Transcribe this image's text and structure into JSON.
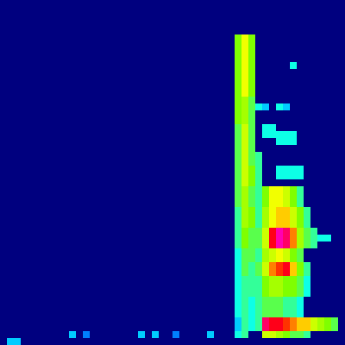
{
  "chart_data": {
    "type": "heatmap",
    "tick_labels": false,
    "grid": false,
    "xlim": [
      0,
      50
    ],
    "ylim": [
      0,
      50
    ],
    "value_range": [
      0,
      1
    ],
    "cells": [
      [
        34,
        44,
        0.5
      ],
      [
        35,
        44,
        0.65
      ],
      [
        36,
        44,
        0.5
      ],
      [
        34,
        43,
        0.5
      ],
      [
        35,
        43,
        0.65
      ],
      [
        36,
        43,
        0.5
      ],
      [
        34,
        42,
        0.5
      ],
      [
        35,
        42,
        0.65
      ],
      [
        36,
        42,
        0.5
      ],
      [
        34,
        41,
        0.5
      ],
      [
        35,
        41,
        0.65
      ],
      [
        36,
        41,
        0.5
      ],
      [
        34,
        40,
        0.5
      ],
      [
        35,
        40,
        0.65
      ],
      [
        36,
        40,
        0.5
      ],
      [
        42,
        40,
        0.35
      ],
      [
        34,
        39,
        0.5
      ],
      [
        35,
        39,
        0.65
      ],
      [
        36,
        39,
        0.5
      ],
      [
        34,
        38,
        0.5
      ],
      [
        35,
        38,
        0.65
      ],
      [
        36,
        38,
        0.5
      ],
      [
        34,
        37,
        0.5
      ],
      [
        35,
        37,
        0.65
      ],
      [
        36,
        37,
        0.5
      ],
      [
        34,
        36,
        0.5
      ],
      [
        35,
        36,
        0.65
      ],
      [
        36,
        36,
        0.5
      ],
      [
        34,
        35,
        0.5
      ],
      [
        35,
        35,
        0.55
      ],
      [
        36,
        35,
        0.45
      ],
      [
        34,
        34,
        0.5
      ],
      [
        35,
        34,
        0.55
      ],
      [
        36,
        34,
        0.45
      ],
      [
        37,
        34,
        0.35
      ],
      [
        38,
        34,
        0.3
      ],
      [
        40,
        34,
        0.35
      ],
      [
        41,
        34,
        0.3
      ],
      [
        34,
        33,
        0.5
      ],
      [
        35,
        33,
        0.55
      ],
      [
        36,
        33,
        0.45
      ],
      [
        34,
        32,
        0.5
      ],
      [
        35,
        32,
        0.55
      ],
      [
        36,
        32,
        0.45
      ],
      [
        34,
        31,
        0.45
      ],
      [
        35,
        31,
        0.6
      ],
      [
        36,
        31,
        0.45
      ],
      [
        38,
        31,
        0.35
      ],
      [
        39,
        31,
        0.35
      ],
      [
        34,
        30,
        0.45
      ],
      [
        35,
        30,
        0.6
      ],
      [
        36,
        30,
        0.45
      ],
      [
        38,
        30,
        0.35
      ],
      [
        39,
        30,
        0.35
      ],
      [
        40,
        30,
        0.35
      ],
      [
        41,
        30,
        0.35
      ],
      [
        42,
        30,
        0.35
      ],
      [
        34,
        29,
        0.45
      ],
      [
        35,
        29,
        0.6
      ],
      [
        36,
        29,
        0.45
      ],
      [
        40,
        29,
        0.35
      ],
      [
        41,
        29,
        0.35
      ],
      [
        42,
        29,
        0.35
      ],
      [
        34,
        28,
        0.45
      ],
      [
        35,
        28,
        0.6
      ],
      [
        36,
        28,
        0.45
      ],
      [
        34,
        27,
        0.45
      ],
      [
        35,
        27,
        0.6
      ],
      [
        36,
        27,
        0.45
      ],
      [
        37,
        27,
        0.4
      ],
      [
        34,
        26,
        0.45
      ],
      [
        35,
        26,
        0.6
      ],
      [
        36,
        26,
        0.45
      ],
      [
        37,
        26,
        0.4
      ],
      [
        34,
        25,
        0.45
      ],
      [
        35,
        25,
        0.6
      ],
      [
        36,
        25,
        0.5
      ],
      [
        37,
        25,
        0.4
      ],
      [
        40,
        25,
        0.35
      ],
      [
        41,
        25,
        0.35
      ],
      [
        42,
        25,
        0.35
      ],
      [
        43,
        25,
        0.35
      ],
      [
        34,
        24,
        0.45
      ],
      [
        35,
        24,
        0.6
      ],
      [
        36,
        24,
        0.5
      ],
      [
        37,
        24,
        0.4
      ],
      [
        40,
        24,
        0.35
      ],
      [
        41,
        24,
        0.35
      ],
      [
        42,
        24,
        0.35
      ],
      [
        43,
        24,
        0.35
      ],
      [
        34,
        23,
        0.45
      ],
      [
        35,
        23,
        0.6
      ],
      [
        36,
        23,
        0.5
      ],
      [
        37,
        23,
        0.4
      ],
      [
        34,
        22,
        0.45
      ],
      [
        35,
        22,
        0.55
      ],
      [
        36,
        22,
        0.45
      ],
      [
        37,
        22,
        0.4
      ],
      [
        38,
        22,
        0.5
      ],
      [
        39,
        22,
        0.65
      ],
      [
        40,
        22,
        0.65
      ],
      [
        41,
        22,
        0.6
      ],
      [
        42,
        22,
        0.5
      ],
      [
        43,
        22,
        0.4
      ],
      [
        34,
        21,
        0.45
      ],
      [
        35,
        21,
        0.55
      ],
      [
        36,
        21,
        0.45
      ],
      [
        37,
        21,
        0.4
      ],
      [
        38,
        21,
        0.5
      ],
      [
        39,
        21,
        0.65
      ],
      [
        40,
        21,
        0.65
      ],
      [
        41,
        21,
        0.6
      ],
      [
        42,
        21,
        0.5
      ],
      [
        43,
        21,
        0.4
      ],
      [
        34,
        20,
        0.45
      ],
      [
        35,
        20,
        0.55
      ],
      [
        36,
        20,
        0.45
      ],
      [
        37,
        20,
        0.4
      ],
      [
        38,
        20,
        0.5
      ],
      [
        39,
        20,
        0.65
      ],
      [
        40,
        20,
        0.65
      ],
      [
        41,
        20,
        0.6
      ],
      [
        42,
        20,
        0.5
      ],
      [
        43,
        20,
        0.4
      ],
      [
        34,
        19,
        0.4
      ],
      [
        35,
        19,
        0.55
      ],
      [
        36,
        19,
        0.5
      ],
      [
        37,
        19,
        0.4
      ],
      [
        38,
        19,
        0.55
      ],
      [
        39,
        19,
        0.65
      ],
      [
        40,
        19,
        0.7
      ],
      [
        41,
        19,
        0.7
      ],
      [
        42,
        19,
        0.6
      ],
      [
        43,
        19,
        0.5
      ],
      [
        44,
        19,
        0.4
      ],
      [
        34,
        18,
        0.4
      ],
      [
        35,
        18,
        0.55
      ],
      [
        36,
        18,
        0.5
      ],
      [
        37,
        18,
        0.4
      ],
      [
        38,
        18,
        0.55
      ],
      [
        39,
        18,
        0.65
      ],
      [
        40,
        18,
        0.7
      ],
      [
        41,
        18,
        0.7
      ],
      [
        42,
        18,
        0.6
      ],
      [
        43,
        18,
        0.5
      ],
      [
        44,
        18,
        0.4
      ],
      [
        34,
        17,
        0.4
      ],
      [
        35,
        17,
        0.55
      ],
      [
        36,
        17,
        0.5
      ],
      [
        37,
        17,
        0.4
      ],
      [
        38,
        17,
        0.55
      ],
      [
        39,
        17,
        0.65
      ],
      [
        40,
        17,
        0.7
      ],
      [
        41,
        17,
        0.7
      ],
      [
        42,
        17,
        0.6
      ],
      [
        43,
        17,
        0.5
      ],
      [
        44,
        17,
        0.4
      ],
      [
        34,
        16,
        0.4
      ],
      [
        35,
        16,
        0.5
      ],
      [
        36,
        16,
        0.45
      ],
      [
        37,
        16,
        0.45
      ],
      [
        38,
        16,
        0.6
      ],
      [
        39,
        16,
        0.85
      ],
      [
        40,
        16,
        0.95
      ],
      [
        41,
        16,
        0.9
      ],
      [
        42,
        16,
        0.75
      ],
      [
        43,
        16,
        0.55
      ],
      [
        44,
        16,
        0.45
      ],
      [
        45,
        16,
        0.4
      ],
      [
        34,
        15,
        0.4
      ],
      [
        35,
        15,
        0.5
      ],
      [
        36,
        15,
        0.45
      ],
      [
        37,
        15,
        0.45
      ],
      [
        38,
        15,
        0.6
      ],
      [
        39,
        15,
        0.85
      ],
      [
        40,
        15,
        0.95
      ],
      [
        41,
        15,
        0.9
      ],
      [
        42,
        15,
        0.75
      ],
      [
        43,
        15,
        0.55
      ],
      [
        44,
        15,
        0.45
      ],
      [
        45,
        15,
        0.4
      ],
      [
        46,
        15,
        0.35
      ],
      [
        47,
        15,
        0.35
      ],
      [
        34,
        14,
        0.4
      ],
      [
        35,
        14,
        0.5
      ],
      [
        36,
        14,
        0.45
      ],
      [
        37,
        14,
        0.45
      ],
      [
        38,
        14,
        0.6
      ],
      [
        39,
        14,
        0.85
      ],
      [
        40,
        14,
        0.95
      ],
      [
        41,
        14,
        0.9
      ],
      [
        42,
        14,
        0.75
      ],
      [
        43,
        14,
        0.55
      ],
      [
        44,
        14,
        0.45
      ],
      [
        45,
        14,
        0.4
      ],
      [
        34,
        13,
        0.35
      ],
      [
        35,
        13,
        0.45
      ],
      [
        36,
        13,
        0.45
      ],
      [
        37,
        13,
        0.4
      ],
      [
        38,
        13,
        0.55
      ],
      [
        39,
        13,
        0.6
      ],
      [
        40,
        13,
        0.65
      ],
      [
        41,
        13,
        0.6
      ],
      [
        42,
        13,
        0.5
      ],
      [
        43,
        13,
        0.45
      ],
      [
        34,
        12,
        0.35
      ],
      [
        35,
        12,
        0.45
      ],
      [
        36,
        12,
        0.45
      ],
      [
        37,
        12,
        0.4
      ],
      [
        38,
        12,
        0.55
      ],
      [
        39,
        12,
        0.6
      ],
      [
        40,
        12,
        0.65
      ],
      [
        41,
        12,
        0.6
      ],
      [
        42,
        12,
        0.5
      ],
      [
        43,
        12,
        0.45
      ],
      [
        34,
        11,
        0.35
      ],
      [
        35,
        11,
        0.45
      ],
      [
        36,
        11,
        0.4
      ],
      [
        37,
        11,
        0.45
      ],
      [
        38,
        11,
        0.6
      ],
      [
        39,
        11,
        0.75
      ],
      [
        40,
        11,
        0.8
      ],
      [
        41,
        11,
        0.85
      ],
      [
        42,
        11,
        0.7
      ],
      [
        43,
        11,
        0.5
      ],
      [
        44,
        11,
        0.4
      ],
      [
        34,
        10,
        0.35
      ],
      [
        35,
        10,
        0.45
      ],
      [
        36,
        10,
        0.4
      ],
      [
        37,
        10,
        0.45
      ],
      [
        38,
        10,
        0.6
      ],
      [
        39,
        10,
        0.75
      ],
      [
        40,
        10,
        0.8
      ],
      [
        41,
        10,
        0.85
      ],
      [
        42,
        10,
        0.7
      ],
      [
        43,
        10,
        0.5
      ],
      [
        44,
        10,
        0.4
      ],
      [
        34,
        9,
        0.35
      ],
      [
        35,
        9,
        0.4
      ],
      [
        36,
        9,
        0.4
      ],
      [
        37,
        9,
        0.4
      ],
      [
        38,
        9,
        0.5
      ],
      [
        39,
        9,
        0.55
      ],
      [
        40,
        9,
        0.55
      ],
      [
        41,
        9,
        0.5
      ],
      [
        42,
        9,
        0.5
      ],
      [
        43,
        9,
        0.45
      ],
      [
        44,
        9,
        0.35
      ],
      [
        34,
        8,
        0.35
      ],
      [
        35,
        8,
        0.4
      ],
      [
        36,
        8,
        0.4
      ],
      [
        37,
        8,
        0.4
      ],
      [
        38,
        8,
        0.5
      ],
      [
        39,
        8,
        0.55
      ],
      [
        40,
        8,
        0.55
      ],
      [
        41,
        8,
        0.5
      ],
      [
        42,
        8,
        0.5
      ],
      [
        43,
        8,
        0.45
      ],
      [
        44,
        8,
        0.35
      ],
      [
        34,
        7,
        0.35
      ],
      [
        35,
        7,
        0.4
      ],
      [
        36,
        7,
        0.4
      ],
      [
        37,
        7,
        0.4
      ],
      [
        38,
        7,
        0.5
      ],
      [
        39,
        7,
        0.55
      ],
      [
        40,
        7,
        0.55
      ],
      [
        41,
        7,
        0.5
      ],
      [
        42,
        7,
        0.5
      ],
      [
        43,
        7,
        0.45
      ],
      [
        44,
        7,
        0.35
      ],
      [
        34,
        6,
        0.35
      ],
      [
        35,
        6,
        0.4
      ],
      [
        36,
        6,
        0.35
      ],
      [
        37,
        6,
        0.4
      ],
      [
        38,
        6,
        0.45
      ],
      [
        39,
        6,
        0.45
      ],
      [
        40,
        6,
        0.45
      ],
      [
        41,
        6,
        0.4
      ],
      [
        42,
        6,
        0.4
      ],
      [
        43,
        6,
        0.35
      ],
      [
        34,
        5,
        0.35
      ],
      [
        35,
        5,
        0.4
      ],
      [
        36,
        5,
        0.35
      ],
      [
        37,
        5,
        0.4
      ],
      [
        38,
        5,
        0.45
      ],
      [
        39,
        5,
        0.45
      ],
      [
        40,
        5,
        0.45
      ],
      [
        41,
        5,
        0.4
      ],
      [
        42,
        5,
        0.4
      ],
      [
        43,
        5,
        0.35
      ],
      [
        34,
        4,
        0.35
      ],
      [
        35,
        4,
        0.4
      ],
      [
        36,
        4,
        0.35
      ],
      [
        37,
        4,
        0.4
      ],
      [
        38,
        4,
        0.45
      ],
      [
        39,
        4,
        0.45
      ],
      [
        40,
        4,
        0.45
      ],
      [
        41,
        4,
        0.4
      ],
      [
        42,
        4,
        0.4
      ],
      [
        43,
        4,
        0.35
      ],
      [
        34,
        3,
        0.3
      ],
      [
        35,
        3,
        0.4
      ],
      [
        36,
        3,
        0.35
      ],
      [
        37,
        3,
        0.4
      ],
      [
        38,
        3,
        0.9
      ],
      [
        39,
        3,
        0.85
      ],
      [
        40,
        3,
        0.85
      ],
      [
        41,
        3,
        0.8
      ],
      [
        42,
        3,
        0.75
      ],
      [
        43,
        3,
        0.7
      ],
      [
        44,
        3,
        0.7
      ],
      [
        45,
        3,
        0.6
      ],
      [
        46,
        3,
        0.55
      ],
      [
        47,
        3,
        0.5
      ],
      [
        48,
        3,
        0.45
      ],
      [
        34,
        2,
        0.3
      ],
      [
        35,
        2,
        0.4
      ],
      [
        36,
        2,
        0.35
      ],
      [
        37,
        2,
        0.4
      ],
      [
        38,
        2,
        0.9
      ],
      [
        39,
        2,
        0.85
      ],
      [
        40,
        2,
        0.85
      ],
      [
        41,
        2,
        0.8
      ],
      [
        42,
        2,
        0.75
      ],
      [
        43,
        2,
        0.7
      ],
      [
        44,
        2,
        0.7
      ],
      [
        45,
        2,
        0.6
      ],
      [
        46,
        2,
        0.55
      ],
      [
        47,
        2,
        0.5
      ],
      [
        48,
        2,
        0.45
      ],
      [
        10,
        1,
        0.3
      ],
      [
        12,
        1,
        0.25
      ],
      [
        20,
        1,
        0.3
      ],
      [
        22,
        1,
        0.3
      ],
      [
        25,
        1,
        0.25
      ],
      [
        30,
        1,
        0.3
      ],
      [
        34,
        1,
        0.35
      ],
      [
        35,
        1,
        0.4
      ],
      [
        38,
        1,
        0.6
      ],
      [
        39,
        1,
        0.6
      ],
      [
        40,
        1,
        0.55
      ],
      [
        41,
        1,
        0.5
      ],
      [
        42,
        1,
        0.45
      ],
      [
        43,
        1,
        0.45
      ],
      [
        44,
        1,
        0.4
      ],
      [
        1,
        0,
        0.3
      ],
      [
        2,
        0,
        0.3
      ]
    ]
  }
}
